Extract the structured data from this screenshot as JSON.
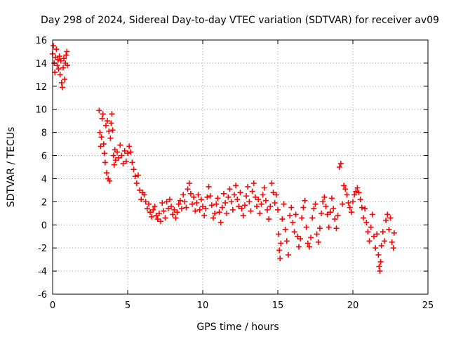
{
  "chart_data": {
    "type": "scatter",
    "title": "Day 298 of 2024, Sidereal Day-to-day VTEC variation (SDTVAR) for receiver av09",
    "xlabel": "GPS time / hours",
    "ylabel": "SDTVAR / TECUs",
    "xlim": [
      0,
      25
    ],
    "ylim": [
      -6,
      16
    ],
    "xticks": [
      "0",
      "5",
      "10",
      "15",
      "20",
      "25"
    ],
    "yticks": [
      "-6",
      "-4",
      "-2",
      "0",
      "2",
      "4",
      "6",
      "8",
      "10",
      "12",
      "14",
      "16"
    ],
    "grid": true,
    "marker": "+",
    "series": [
      {
        "name": "SDTVAR",
        "color": "#ff0000",
        "points": [
          [
            0.0,
            14.8
          ],
          [
            0.05,
            15.5
          ],
          [
            0.1,
            14.0
          ],
          [
            0.15,
            13.2
          ],
          [
            0.2,
            14.5
          ],
          [
            0.25,
            15.2
          ],
          [
            0.3,
            13.8
          ],
          [
            0.35,
            14.3
          ],
          [
            0.4,
            13.5
          ],
          [
            0.45,
            14.6
          ],
          [
            0.5,
            13.0
          ],
          [
            0.55,
            14.2
          ],
          [
            0.6,
            12.3
          ],
          [
            0.65,
            11.9
          ],
          [
            0.7,
            13.6
          ],
          [
            0.75,
            14.4
          ],
          [
            0.8,
            12.6
          ],
          [
            0.85,
            14.0
          ],
          [
            0.9,
            14.7
          ],
          [
            0.95,
            15.0
          ],
          [
            0.98,
            13.8
          ],
          [
            3.1,
            9.9
          ],
          [
            3.15,
            8.0
          ],
          [
            3.2,
            6.8
          ],
          [
            3.25,
            7.6
          ],
          [
            3.3,
            9.2
          ],
          [
            3.35,
            9.6
          ],
          [
            3.4,
            7.0
          ],
          [
            3.45,
            6.2
          ],
          [
            3.5,
            5.4
          ],
          [
            3.55,
            8.6
          ],
          [
            3.6,
            4.5
          ],
          [
            3.65,
            9.0
          ],
          [
            3.7,
            4.0
          ],
          [
            3.75,
            8.1
          ],
          [
            3.8,
            3.8
          ],
          [
            3.85,
            7.5
          ],
          [
            3.9,
            8.8
          ],
          [
            3.95,
            9.6
          ],
          [
            4.0,
            8.2
          ],
          [
            4.05,
            6.0
          ],
          [
            4.1,
            5.2
          ],
          [
            4.15,
            6.5
          ],
          [
            4.2,
            5.6
          ],
          [
            4.3,
            6.3
          ],
          [
            4.4,
            5.8
          ],
          [
            4.5,
            6.9
          ],
          [
            4.6,
            6.0
          ],
          [
            4.7,
            5.3
          ],
          [
            4.8,
            6.4
          ],
          [
            4.9,
            5.5
          ],
          [
            5.0,
            6.2
          ],
          [
            5.1,
            6.8
          ],
          [
            5.2,
            6.3
          ],
          [
            5.3,
            5.4
          ],
          [
            5.4,
            4.8
          ],
          [
            5.5,
            4.2
          ],
          [
            5.6,
            3.6
          ],
          [
            5.7,
            4.3
          ],
          [
            5.8,
            3.0
          ],
          [
            5.9,
            2.2
          ],
          [
            6.0,
            2.8
          ],
          [
            6.1,
            2.6
          ],
          [
            6.2,
            2.0
          ],
          [
            6.3,
            1.4
          ],
          [
            6.4,
            1.8
          ],
          [
            6.5,
            1.1
          ],
          [
            6.6,
            0.7
          ],
          [
            6.7,
            1.3
          ],
          [
            6.8,
            1.6
          ],
          [
            6.9,
            0.8
          ],
          [
            7.0,
            0.5
          ],
          [
            7.1,
            1.0
          ],
          [
            7.2,
            0.3
          ],
          [
            7.3,
            1.9
          ],
          [
            7.4,
            1.2
          ],
          [
            7.5,
            0.6
          ],
          [
            7.6,
            2.0
          ],
          [
            7.7,
            1.4
          ],
          [
            7.8,
            2.2
          ],
          [
            7.9,
            1.6
          ],
          [
            8.0,
            0.9
          ],
          [
            8.1,
            1.3
          ],
          [
            8.2,
            0.6
          ],
          [
            8.3,
            1.1
          ],
          [
            8.4,
            1.8
          ],
          [
            8.5,
            2.1
          ],
          [
            8.6,
            1.4
          ],
          [
            8.7,
            2.6
          ],
          [
            8.8,
            2.0
          ],
          [
            8.9,
            1.5
          ],
          [
            9.0,
            3.1
          ],
          [
            9.1,
            3.6
          ],
          [
            9.2,
            2.7
          ],
          [
            9.3,
            1.8
          ],
          [
            9.4,
            2.4
          ],
          [
            9.5,
            1.2
          ],
          [
            9.6,
            1.9
          ],
          [
            9.7,
            2.6
          ],
          [
            9.8,
            1.3
          ],
          [
            9.9,
            2.2
          ],
          [
            10.0,
            1.6
          ],
          [
            10.1,
            0.8
          ],
          [
            10.2,
            1.4
          ],
          [
            10.3,
            2.4
          ],
          [
            10.4,
            3.3
          ],
          [
            10.5,
            2.5
          ],
          [
            10.6,
            1.7
          ],
          [
            10.7,
            0.6
          ],
          [
            10.8,
            1.0
          ],
          [
            10.9,
            1.8
          ],
          [
            11.0,
            2.3
          ],
          [
            11.1,
            1.1
          ],
          [
            11.2,
            0.2
          ],
          [
            11.3,
            1.5
          ],
          [
            11.4,
            2.7
          ],
          [
            11.5,
            1.9
          ],
          [
            11.6,
            1.0
          ],
          [
            11.7,
            2.4
          ],
          [
            11.8,
            3.1
          ],
          [
            11.9,
            2.0
          ],
          [
            12.0,
            1.3
          ],
          [
            12.1,
            2.6
          ],
          [
            12.2,
            3.4
          ],
          [
            12.3,
            2.2
          ],
          [
            12.4,
            1.6
          ],
          [
            12.5,
            2.8
          ],
          [
            12.6,
            1.4
          ],
          [
            12.7,
            0.8
          ],
          [
            12.8,
            1.7
          ],
          [
            12.9,
            2.5
          ],
          [
            13.0,
            3.3
          ],
          [
            13.1,
            2.0
          ],
          [
            13.2,
            1.2
          ],
          [
            13.3,
            2.9
          ],
          [
            13.4,
            3.6
          ],
          [
            13.5,
            2.4
          ],
          [
            13.6,
            1.6
          ],
          [
            13.7,
            2.2
          ],
          [
            13.8,
            1.0
          ],
          [
            13.9,
            1.8
          ],
          [
            14.0,
            2.6
          ],
          [
            14.1,
            3.2
          ],
          [
            14.2,
            2.1
          ],
          [
            14.3,
            1.3
          ],
          [
            14.4,
            0.5
          ],
          [
            14.5,
            1.6
          ],
          [
            14.6,
            3.6
          ],
          [
            14.7,
            2.8
          ],
          [
            14.8,
            1.9
          ],
          [
            14.9,
            2.6
          ],
          [
            15.0,
            1.3
          ],
          [
            15.05,
            -0.8
          ],
          [
            15.1,
            -2.2
          ],
          [
            15.15,
            -2.9
          ],
          [
            15.2,
            -1.6
          ],
          [
            15.3,
            0.5
          ],
          [
            15.4,
            1.8
          ],
          [
            15.5,
            -0.4
          ],
          [
            15.6,
            -1.4
          ],
          [
            15.7,
            -2.6
          ],
          [
            15.8,
            0.8
          ],
          [
            15.9,
            1.5
          ],
          [
            16.0,
            0.2
          ],
          [
            16.1,
            -0.6
          ],
          [
            16.2,
            0.9
          ],
          [
            16.3,
            -1.0
          ],
          [
            16.4,
            -1.9
          ],
          [
            16.5,
            -1.2
          ],
          [
            16.6,
            0.6
          ],
          [
            16.7,
            1.5
          ],
          [
            16.8,
            2.1
          ],
          [
            16.9,
            -0.2
          ],
          [
            17.0,
            -1.6
          ],
          [
            17.1,
            -1.9
          ],
          [
            17.2,
            -1.1
          ],
          [
            17.3,
            0.6
          ],
          [
            17.4,
            1.4
          ],
          [
            17.5,
            1.8
          ],
          [
            17.6,
            -0.8
          ],
          [
            17.7,
            -1.5
          ],
          [
            17.8,
            -0.3
          ],
          [
            17.9,
            1.0
          ],
          [
            18.0,
            2.0
          ],
          [
            18.1,
            2.4
          ],
          [
            18.2,
            1.6
          ],
          [
            18.3,
            0.9
          ],
          [
            18.4,
            -0.2
          ],
          [
            18.5,
            1.1
          ],
          [
            18.6,
            2.3
          ],
          [
            18.7,
            1.4
          ],
          [
            18.8,
            0.5
          ],
          [
            18.9,
            -0.3
          ],
          [
            19.0,
            0.8
          ],
          [
            19.1,
            5.0
          ],
          [
            19.2,
            5.3
          ],
          [
            19.3,
            1.8
          ],
          [
            19.4,
            3.4
          ],
          [
            19.5,
            3.1
          ],
          [
            19.6,
            2.6
          ],
          [
            19.7,
            1.9
          ],
          [
            19.8,
            1.5
          ],
          [
            19.9,
            1.1
          ],
          [
            20.0,
            2.0
          ],
          [
            20.1,
            2.6
          ],
          [
            20.2,
            2.9
          ],
          [
            20.3,
            3.2
          ],
          [
            20.4,
            2.8
          ],
          [
            20.5,
            2.2
          ],
          [
            20.6,
            1.5
          ],
          [
            20.7,
            0.6
          ],
          [
            20.8,
            1.4
          ],
          [
            20.9,
            0.2
          ],
          [
            21.0,
            -0.6
          ],
          [
            21.1,
            -1.4
          ],
          [
            21.2,
            -0.2
          ],
          [
            21.3,
            0.9
          ],
          [
            21.4,
            -1.0
          ],
          [
            21.5,
            -2.0
          ],
          [
            21.6,
            -0.8
          ],
          [
            21.7,
            -2.6
          ],
          [
            21.75,
            -3.6
          ],
          [
            21.8,
            -4.0
          ],
          [
            21.85,
            -3.2
          ],
          [
            21.9,
            -1.8
          ],
          [
            22.0,
            -0.6
          ],
          [
            22.1,
            -1.4
          ],
          [
            22.2,
            0.4
          ],
          [
            22.3,
            0.9
          ],
          [
            22.4,
            -0.4
          ],
          [
            22.5,
            0.6
          ],
          [
            22.6,
            -1.5
          ],
          [
            22.7,
            -2.0
          ],
          [
            22.75,
            -0.7
          ]
        ]
      }
    ]
  }
}
